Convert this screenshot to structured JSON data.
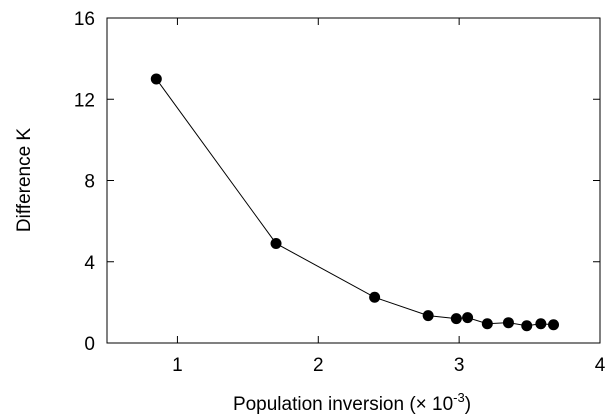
{
  "chart_data": {
    "type": "scatter",
    "title": "",
    "xlabel": "Population inversion (× 10",
    "xlabel_exponent": "-3",
    "xlabel_suffix": ")",
    "ylabel": "Difference K",
    "xlim": [
      0.5,
      4
    ],
    "ylim": [
      0,
      16
    ],
    "xticks": [
      1,
      2,
      3,
      4
    ],
    "yticks": [
      0,
      4,
      8,
      12,
      16
    ],
    "grid": false,
    "legend": "none",
    "line_connected": true,
    "series": [
      {
        "x": [
          0.85,
          1.7,
          2.4,
          2.78,
          2.98,
          3.06,
          3.2,
          3.35,
          3.48,
          3.58,
          3.67
        ],
        "y": [
          13.0,
          4.9,
          2.25,
          1.35,
          1.2,
          1.25,
          0.95,
          1.0,
          0.85,
          0.95,
          0.9
        ]
      }
    ],
    "colors": {
      "marker": "#000000",
      "line": "#000000",
      "axes": "#000000"
    }
  }
}
